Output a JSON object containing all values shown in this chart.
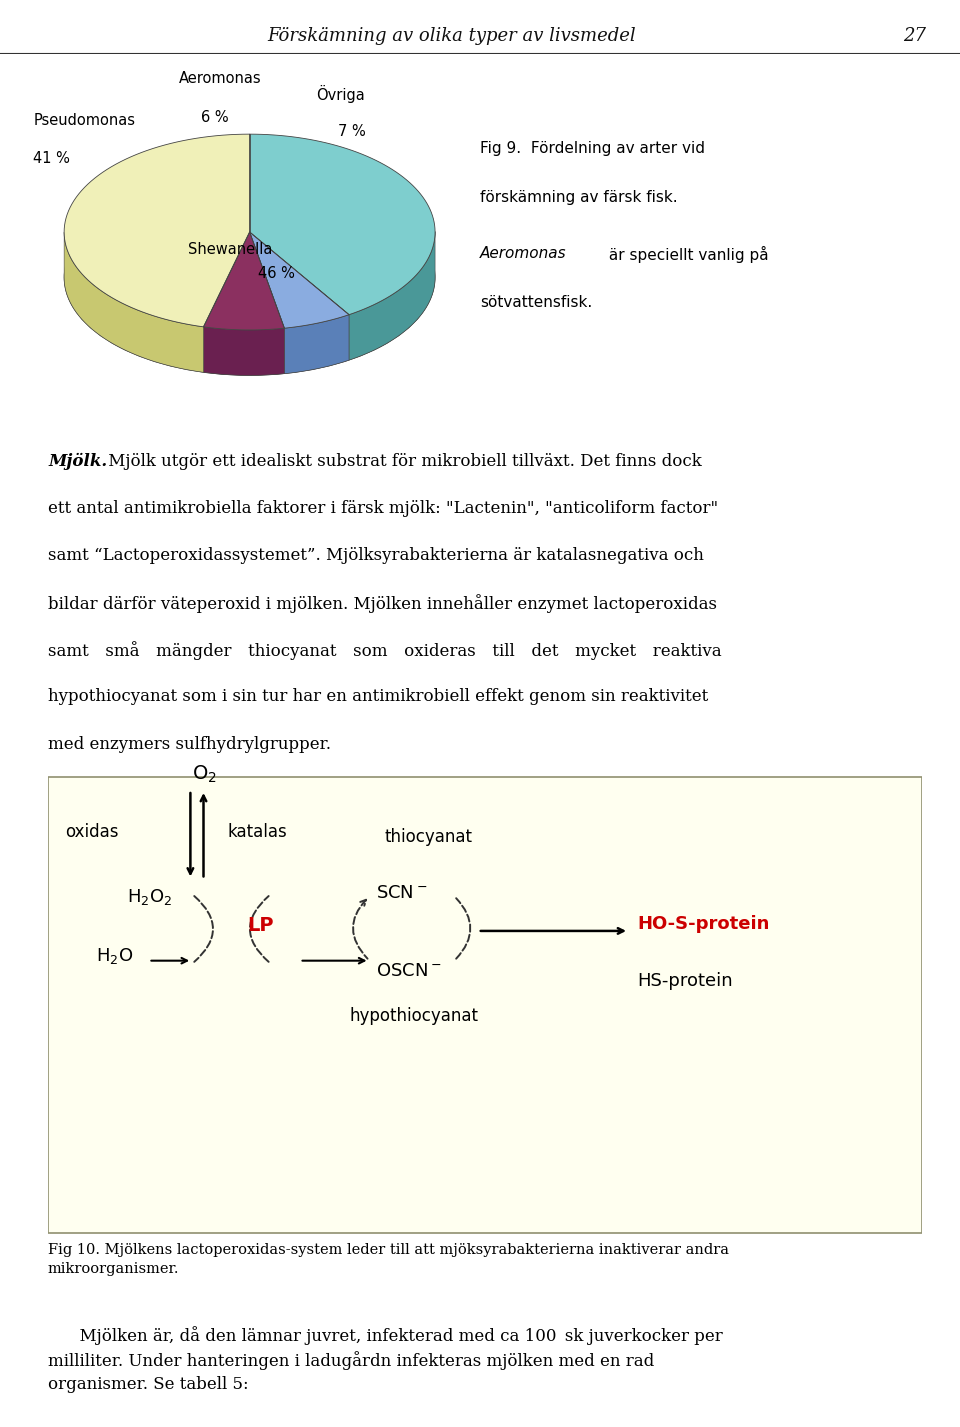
{
  "page_title": "Förskämning av olika typer av livsmedel",
  "page_number": "27",
  "pie_slices": [
    41,
    6,
    7,
    46
  ],
  "pie_labels": [
    "Pseudomonas",
    "Aeromonas",
    "Övriga",
    "Shewanella"
  ],
  "pie_pct": [
    "41 %",
    "6 %",
    "7 %",
    "46 %"
  ],
  "pie_colors_top": [
    "#7ecece",
    "#8aace0",
    "#8b3060",
    "#f0f0b8"
  ],
  "pie_colors_side": [
    "#4a9898",
    "#5a80b8",
    "#6a2050",
    "#c8c870"
  ],
  "pie_side_base": "#b0b878",
  "fig9_line1": "Fig 9.  Fördelning av arter vid",
  "fig9_line2": "förskämning av färsk fisk.",
  "fig9_aeromonas": "Aeromonas",
  "fig9_line3b": " är speciellt vanlig på",
  "fig9_line4": "sötvattensfisk.",
  "box_facecolor": "#fffff0",
  "box_edgecolor": "#909070",
  "lp_color": "#cc0000",
  "ho_color": "#cc0000"
}
